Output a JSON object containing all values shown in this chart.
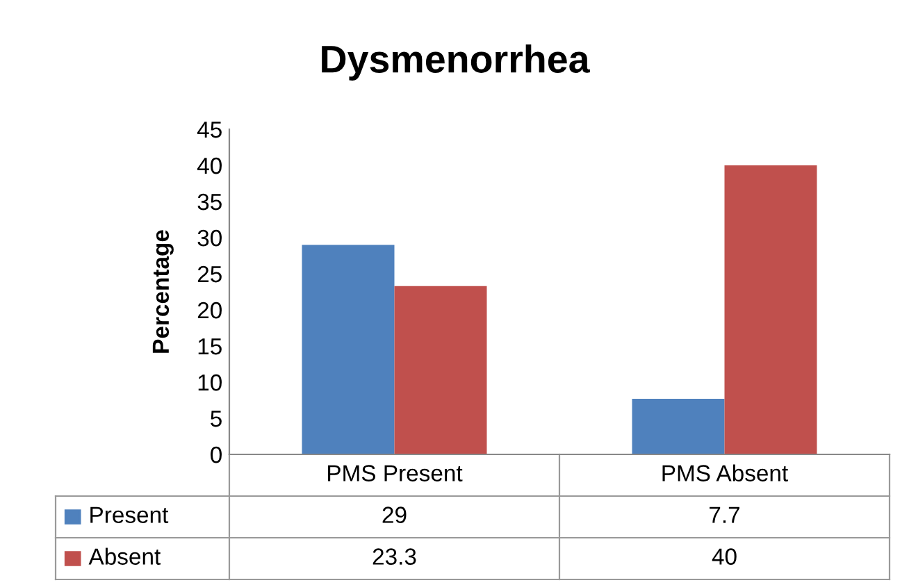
{
  "chart_data": {
    "type": "bar",
    "title": "Dysmenorrhea",
    "ylabel": "Percentage",
    "categories": [
      "PMS Present",
      "PMS Absent"
    ],
    "series": [
      {
        "name": "Present",
        "color": "#4f81bd",
        "values": [
          29,
          7.7
        ]
      },
      {
        "name": "Absent",
        "color": "#c0504d",
        "values": [
          23.3,
          40
        ]
      }
    ],
    "ylim": [
      0,
      45
    ],
    "yticks": [
      0,
      5,
      10,
      15,
      20,
      25,
      30,
      35,
      40,
      45
    ],
    "grid": false,
    "data_labels": true,
    "legend": "bottom"
  }
}
